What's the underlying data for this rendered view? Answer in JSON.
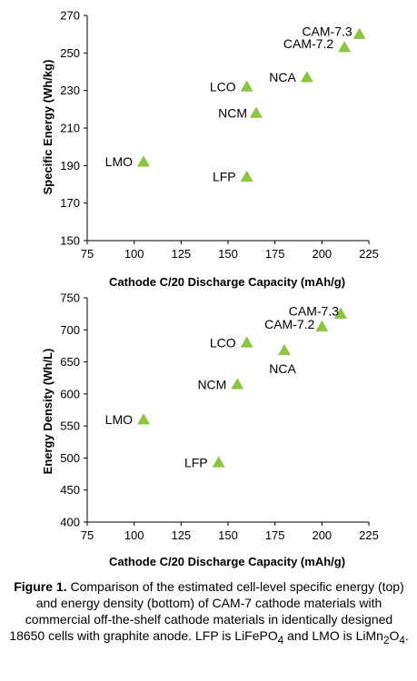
{
  "chart_data": [
    {
      "type": "scatter",
      "title": "",
      "xlabel": "Cathode C/20 Discharge Capacity (mAh/g)",
      "ylabel": "Specific Energy (Wh/kg)",
      "xlim": [
        75,
        225
      ],
      "ylim": [
        150,
        270
      ],
      "xticks": [
        75,
        100,
        125,
        150,
        175,
        200,
        225
      ],
      "yticks": [
        150,
        170,
        190,
        210,
        230,
        250,
        270
      ],
      "grid": false,
      "marker_color": "#8cc63f",
      "points": [
        {
          "label": "LMO",
          "x": 105,
          "y": 192
        },
        {
          "label": "LFP",
          "x": 160,
          "y": 184
        },
        {
          "label": "NCM",
          "x": 165,
          "y": 218
        },
        {
          "label": "LCO",
          "x": 160,
          "y": 232
        },
        {
          "label": "NCA",
          "x": 192,
          "y": 237
        },
        {
          "label": "CAM-7.2",
          "x": 212,
          "y": 253
        },
        {
          "label": "CAM-7.3",
          "x": 220,
          "y": 260
        }
      ]
    },
    {
      "type": "scatter",
      "title": "",
      "xlabel": "Cathode C/20 Discharge Capacity (mAh/g)",
      "ylabel": "Energy Density (Wh/L)",
      "xlim": [
        75,
        225
      ],
      "ylim": [
        400,
        750
      ],
      "xticks": [
        75,
        100,
        125,
        150,
        175,
        200,
        225
      ],
      "yticks": [
        400,
        450,
        500,
        550,
        600,
        650,
        700,
        750
      ],
      "grid": false,
      "marker_color": "#8cc63f",
      "points": [
        {
          "label": "LMO",
          "x": 105,
          "y": 560
        },
        {
          "label": "LFP",
          "x": 145,
          "y": 493
        },
        {
          "label": "NCM",
          "x": 155,
          "y": 615
        },
        {
          "label": "LCO",
          "x": 160,
          "y": 680
        },
        {
          "label": "NCA",
          "x": 180,
          "y": 668
        },
        {
          "label": "CAM-7.2",
          "x": 200,
          "y": 705
        },
        {
          "label": "CAM-7.3",
          "x": 210,
          "y": 725
        }
      ]
    }
  ],
  "caption": {
    "figure_label": "Figure 1.",
    "text_main": " Comparison of the estimated cell-level specific energy (top) and energy density (bottom) of CAM-7 cathode materials with commercial off-the-shelf cathode materials in identically designed 18650 cells with graphite anode. LFP is LiFePO",
    "sub_a": "4",
    "text_mid": " and LMO is LiMn",
    "sub_b": "2",
    "text_o": "O",
    "sub_c": "4",
    "text_end": "."
  }
}
